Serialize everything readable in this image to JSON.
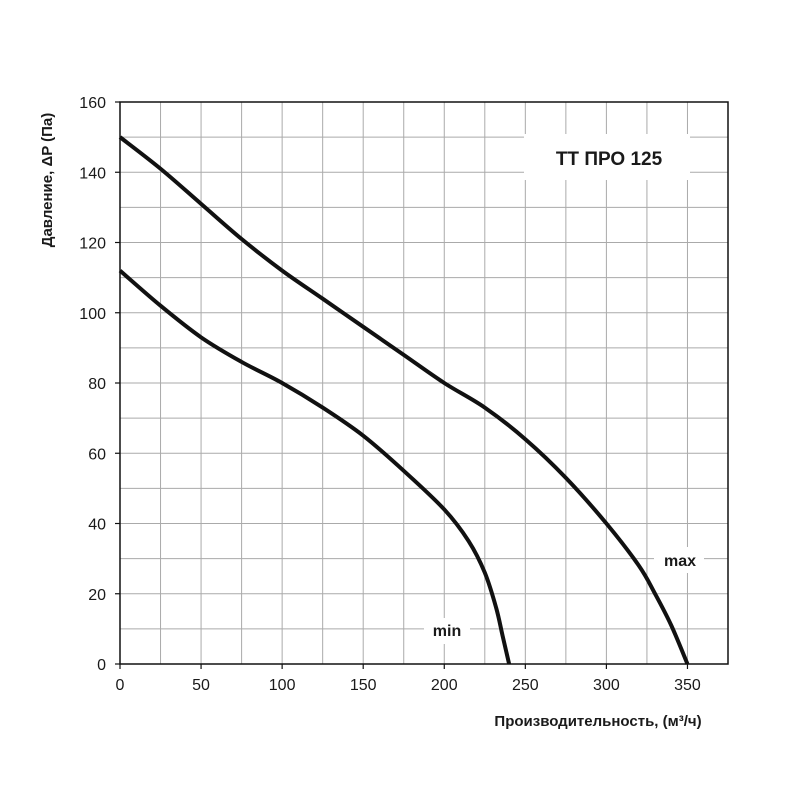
{
  "chart_data": {
    "type": "line",
    "title": "TT ПРО 125",
    "xlabel": "Производительность, (м³/ч)",
    "ylabel": "Давление, ΔP (Па)",
    "xlim": [
      0,
      375
    ],
    "ylim": [
      0,
      160
    ],
    "x_ticks": [
      0,
      50,
      100,
      150,
      200,
      250,
      300,
      350
    ],
    "y_ticks": [
      0,
      20,
      40,
      60,
      80,
      100,
      120,
      140,
      160
    ],
    "grid": true,
    "series": [
      {
        "name": "max",
        "x": [
          0,
          25,
          50,
          75,
          100,
          125,
          150,
          175,
          200,
          225,
          250,
          275,
          300,
          320,
          330,
          340,
          350
        ],
        "y": [
          150,
          141,
          131,
          121,
          112,
          104,
          96,
          88,
          80,
          73,
          64,
          53,
          40,
          28,
          20,
          11,
          0
        ]
      },
      {
        "name": "min",
        "x": [
          0,
          25,
          50,
          75,
          100,
          125,
          150,
          175,
          200,
          215,
          225,
          232,
          236,
          240
        ],
        "y": [
          112,
          102,
          93,
          86,
          80,
          73,
          65,
          55,
          44,
          35,
          26,
          16,
          8,
          0
        ]
      }
    ],
    "colors": {
      "line": "#111111",
      "grid": "#aaaaaa",
      "axis": "#111111",
      "background": "#ffffff"
    }
  }
}
